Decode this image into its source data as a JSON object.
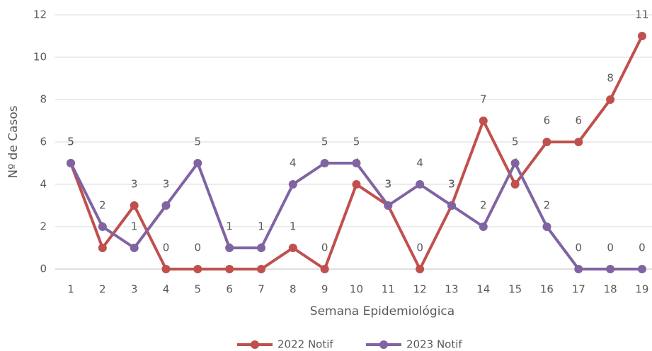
{
  "chart_data": {
    "type": "line",
    "x_label": "Semana Epidemiológica",
    "y_label": "Nº de Casos",
    "categories": [
      "1",
      "2",
      "3",
      "4",
      "5",
      "6",
      "7",
      "8",
      "9",
      "10",
      "11",
      "12",
      "13",
      "14",
      "15",
      "16",
      "17",
      "18",
      "19"
    ],
    "series": [
      {
        "name": "2022 Notif",
        "color": "#c0504d",
        "values": [
          5,
          1,
          3,
          0,
          0,
          0,
          0,
          1,
          0,
          4,
          3,
          0,
          3,
          7,
          4,
          6,
          6,
          8,
          11
        ]
      },
      {
        "name": "2023 Notif",
        "color": "#8064a2",
        "values": [
          5,
          2,
          1,
          3,
          5,
          1,
          1,
          4,
          5,
          5,
          3,
          4,
          3,
          2,
          5,
          2,
          0,
          0,
          0
        ]
      }
    ],
    "ylim": [
      0,
      12
    ],
    "yticks": [
      0,
      2,
      4,
      6,
      8,
      10,
      12
    ],
    "grid": true,
    "legend": "bottom",
    "data_labels": true
  }
}
